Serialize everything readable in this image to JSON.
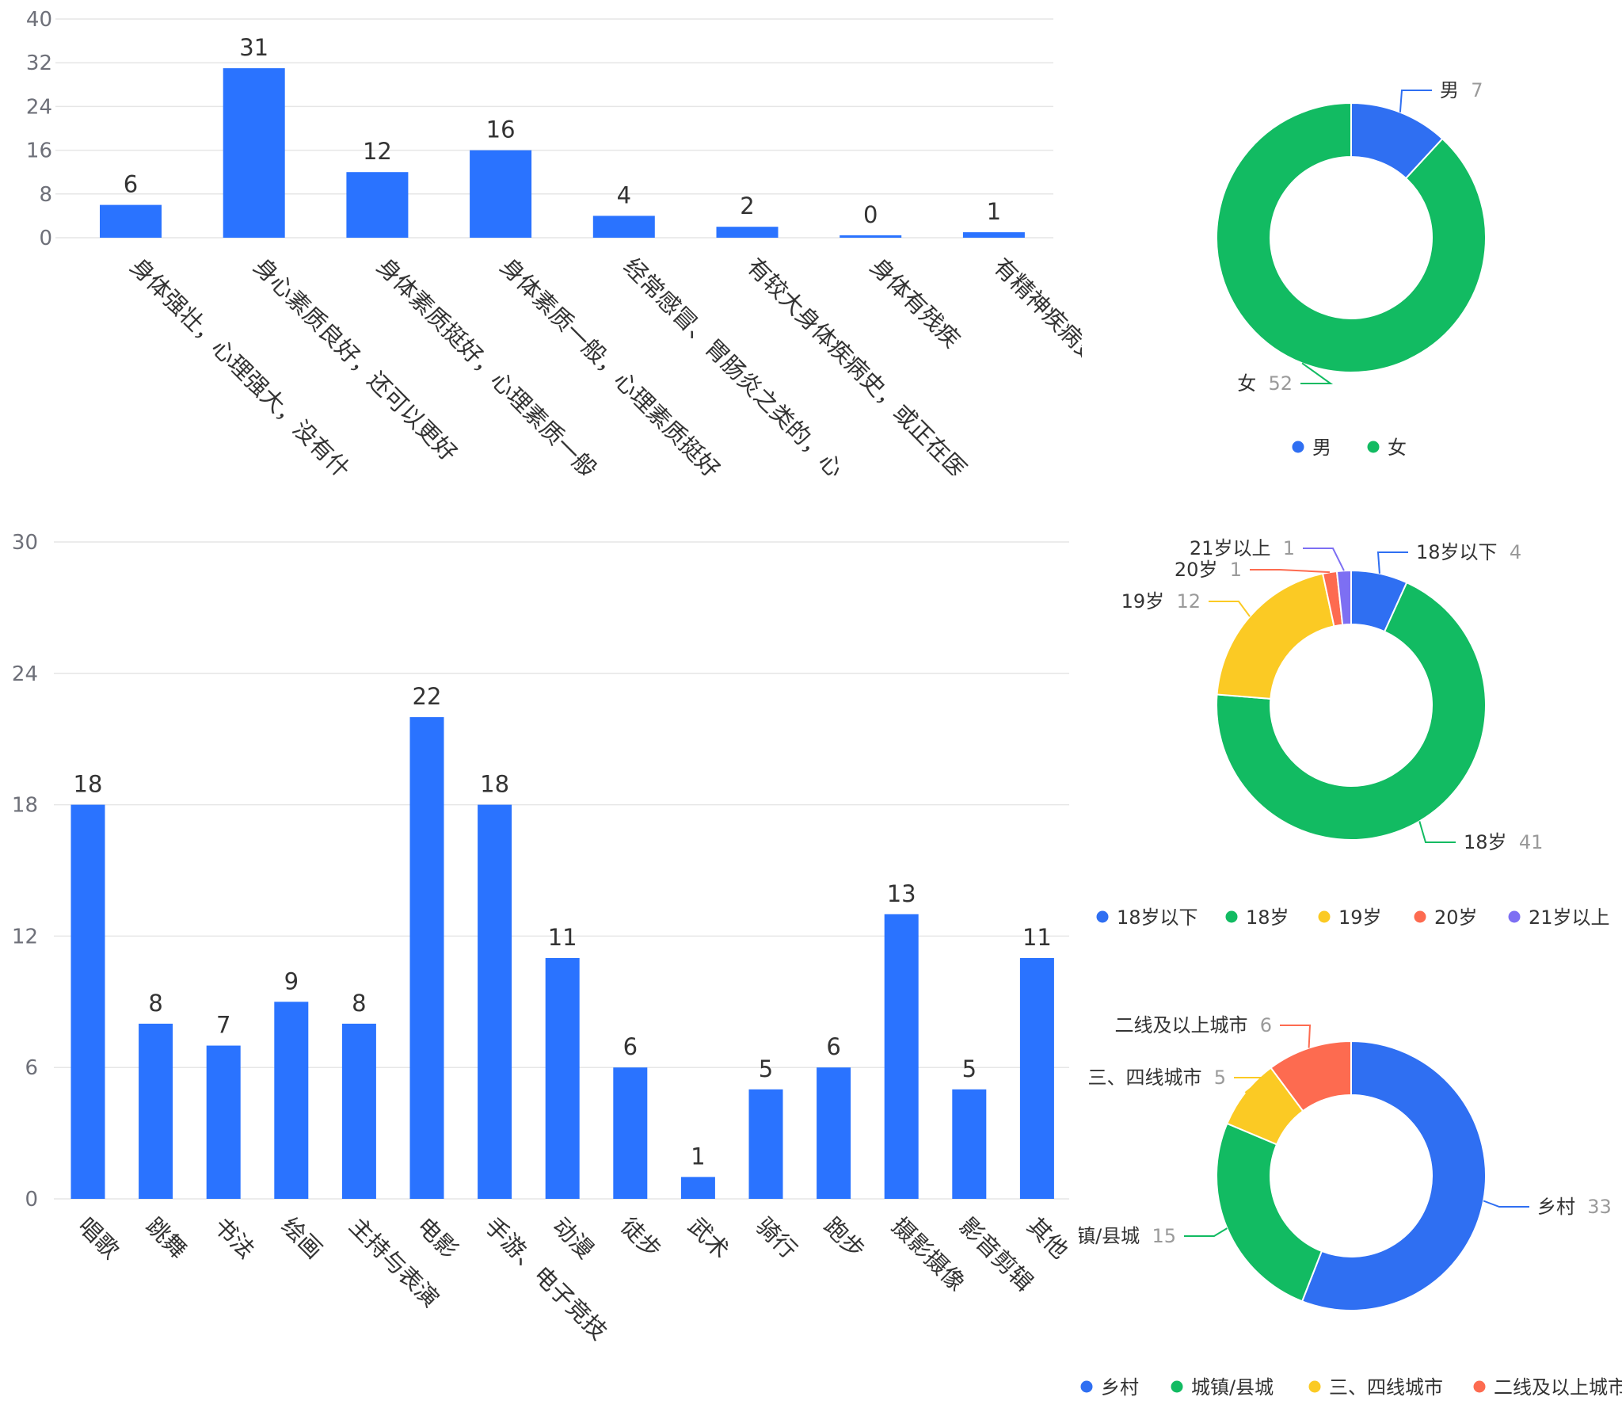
{
  "colors": {
    "bar": "#2a73ff",
    "grid": "#e6e6e6",
    "blue": "#2f6ff2",
    "green": "#12bb62",
    "yellow": "#fbca24",
    "red": "#fd6b50",
    "purple": "#7d6ff3"
  },
  "chart_data": [
    {
      "type": "bar",
      "categories": [
        "身体强壮，心理强大，没有什",
        "身心素质良好，还可以更好",
        "身体素质挺好，心理素质一般",
        "身体素质一般，心理素质挺好",
        "经常感冒、胃肠炎之类的，心",
        "有较大身体疾病史，或正在医",
        "身体有残疾",
        "有精神疾病史"
      ],
      "values": [
        6,
        31,
        12,
        16,
        4,
        2,
        0,
        1
      ],
      "yticks": [
        "0",
        "8",
        "16",
        "24",
        "32",
        "40"
      ],
      "ylim": [
        0,
        40
      ]
    },
    {
      "type": "pie",
      "labels": [
        "男",
        "女"
      ],
      "values": [
        7,
        52
      ],
      "legend": "bottom"
    },
    {
      "type": "bar",
      "categories": [
        "唱歌",
        "跳舞",
        "书法",
        "绘画",
        "主持与表演",
        "电影",
        "手游、电子竞技",
        "动漫",
        "徒步",
        "武术",
        "骑行",
        "跑步",
        "摄影摄像",
        "影音剪辑",
        "其他"
      ],
      "values": [
        18,
        8,
        7,
        9,
        8,
        22,
        18,
        11,
        6,
        1,
        5,
        6,
        13,
        5,
        11
      ],
      "yticks": [
        "0",
        "6",
        "12",
        "18",
        "24",
        "30"
      ],
      "ylim": [
        0,
        30
      ]
    },
    {
      "type": "pie",
      "labels": [
        "18岁以下",
        "18岁",
        "19岁",
        "20岁",
        "21岁以上"
      ],
      "values": [
        4,
        41,
        12,
        1,
        1
      ],
      "legend": "bottom"
    },
    {
      "type": "pie",
      "labels": [
        "乡村",
        "城镇/县城",
        "三、四线城市",
        "二线及以上城市"
      ],
      "values": [
        33,
        15,
        5,
        6
      ],
      "legend": "bottom"
    }
  ]
}
